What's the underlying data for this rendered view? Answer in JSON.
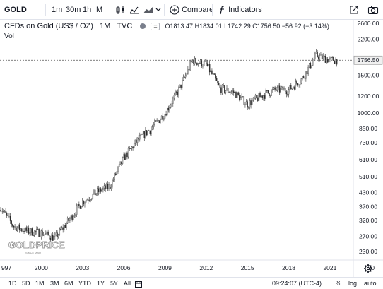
{
  "toolbar": {
    "symbol": "GOLD",
    "intervals": [
      "1m",
      "30m",
      "1h"
    ],
    "interval_more": "M",
    "compare_label": "Compare",
    "indicators_label": "Indicators"
  },
  "legend": {
    "title": "CFDs on Gold (US$ / OZ)",
    "interval": "1M",
    "source": "TVC",
    "o_label": "O",
    "o_value": "1813.47",
    "h_label": "H",
    "h_value": "1834.01",
    "l_label": "L",
    "l_value": "1742.29",
    "c_label": "C",
    "c_value": "1756.50",
    "change": "−56.92 (−3.14%)",
    "volume_label": "Vol"
  },
  "watermark": {
    "brand": "GOLDPRICE",
    "tagline": "SINCE 2002"
  },
  "price_axis": {
    "labels": [
      "2600.00",
      "2200.00",
      "1500.00",
      "1200.00",
      "1000.00",
      "850.00",
      "730.00",
      "610.00",
      "510.00",
      "430.00",
      "370.00",
      "320.00",
      "270.00",
      "230.00"
    ],
    "last_price": "1756.50"
  },
  "time_axis": {
    "labels": [
      "997",
      "2000",
      "2003",
      "2006",
      "2009",
      "2012",
      "2015",
      "2018",
      "2021",
      "20"
    ]
  },
  "bottom": {
    "ranges": [
      "1D",
      "5D",
      "1M",
      "3M",
      "6M",
      "YTD",
      "1Y",
      "5Y",
      "All"
    ],
    "time": "09:24:07 (UTC-4)",
    "percent": "%",
    "log": "log",
    "auto": "auto"
  },
  "colors": {
    "candle_up": "#c9c9c9",
    "candle_down": "#2a2a2a",
    "price_line": "#555555",
    "background": "#ffffff"
  },
  "chart_data": {
    "type": "candlestick",
    "scale": "log",
    "x": [
      "1997",
      "1998",
      "1999",
      "2000",
      "2001",
      "2002",
      "2003",
      "2004",
      "2005",
      "2006",
      "2007",
      "2008",
      "2009",
      "2010",
      "2011",
      "2012",
      "2013",
      "2014",
      "2015",
      "2016",
      "2017",
      "2018",
      "2019",
      "2020",
      "2021"
    ],
    "values": [
      370,
      300,
      285,
      280,
      265,
      320,
      390,
      430,
      460,
      620,
      750,
      850,
      1000,
      1280,
      1750,
      1680,
      1300,
      1250,
      1100,
      1200,
      1280,
      1280,
      1450,
      1850,
      1756.5
    ],
    "ylim": [
      210,
      2700
    ]
  }
}
